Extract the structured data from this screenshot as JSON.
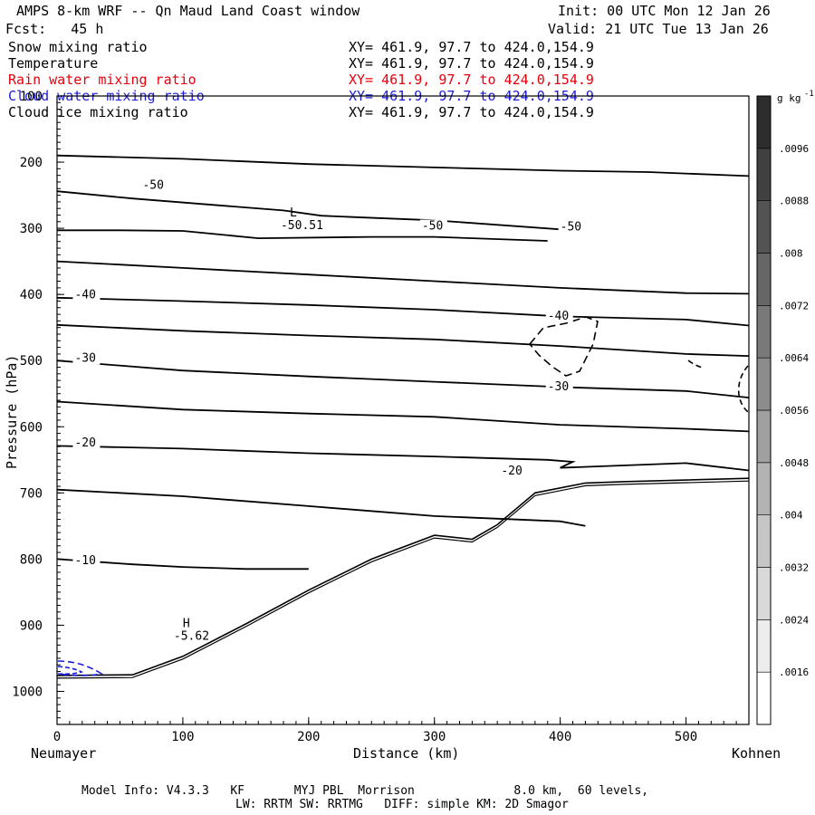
{
  "header": {
    "title": "AMPS 8-km WRF -- Qn Maud Land Coast window",
    "init": "Init: 00 UTC Mon 12 Jan 26",
    "fcst": "Fcst:   45 h",
    "valid": "Valid: 21 UTC Tue 13 Jan 26"
  },
  "fields": [
    {
      "name": "Snow mixing ratio",
      "xy": "XY= 461.9, 97.7 to 424.0,154.9",
      "color": "#000000"
    },
    {
      "name": "Temperature",
      "xy": "XY= 461.9, 97.7 to 424.0,154.9",
      "color": "#000000"
    },
    {
      "name": "Rain water mixing ratio",
      "xy": "XY= 461.9, 97.7 to 424.0,154.9",
      "color": "#e8000b"
    },
    {
      "name": "Cloud water mixing ratio",
      "xy": "XY= 461.9, 97.7 to 424.0,154.9",
      "color": "#1c1cd8"
    },
    {
      "name": "Cloud ice mixing ratio",
      "xy": "XY= 461.9, 97.7 to 424.0,154.9",
      "color": "#000000"
    }
  ],
  "chart_data": {
    "type": "cross-section contour",
    "xlabel": "Distance (km)",
    "ylabel": "Pressure (hPa)",
    "xlim": [
      0,
      550
    ],
    "ylim": [
      1050,
      100
    ],
    "x_ticks": [
      0,
      100,
      200,
      300,
      400,
      500
    ],
    "y_ticks": [
      100,
      200,
      300,
      400,
      500,
      600,
      700,
      800,
      900,
      1000
    ],
    "x_endpoint_labels": [
      "Neumayer",
      "Kohnen"
    ],
    "temperature_contours": [
      {
        "level": "-50",
        "points": [
          [
            0,
            244
          ],
          [
            60,
            255
          ],
          [
            120,
            264
          ],
          [
            180,
            273
          ],
          [
            210,
            281
          ],
          [
            235,
            283
          ],
          [
            300,
            288
          ],
          [
            410,
            303
          ]
        ]
      },
      {
        "level": "-50",
        "points": [
          [
            0,
            303
          ],
          [
            50,
            303
          ],
          [
            100,
            304
          ],
          [
            160,
            315
          ],
          [
            250,
            313
          ],
          [
            300,
            313
          ],
          [
            390,
            319
          ]
        ]
      },
      {
        "level": "",
        "points": [
          [
            0,
            190
          ],
          [
            100,
            195
          ],
          [
            200,
            203
          ],
          [
            300,
            208
          ],
          [
            400,
            213
          ],
          [
            470,
            215
          ],
          [
            550,
            221
          ]
        ]
      },
      {
        "level": "",
        "points": [
          [
            0,
            350
          ],
          [
            100,
            360
          ],
          [
            200,
            370
          ],
          [
            300,
            380
          ],
          [
            400,
            390
          ],
          [
            500,
            398
          ],
          [
            550,
            399
          ]
        ]
      },
      {
        "level": "-40",
        "points": [
          [
            0,
            405
          ],
          [
            100,
            410
          ],
          [
            200,
            416
          ],
          [
            300,
            423
          ],
          [
            400,
            433
          ],
          [
            500,
            438
          ],
          [
            550,
            447
          ]
        ]
      },
      {
        "level": "",
        "points": [
          [
            0,
            446
          ],
          [
            100,
            455
          ],
          [
            200,
            462
          ],
          [
            300,
            468
          ],
          [
            400,
            478
          ],
          [
            500,
            490
          ],
          [
            550,
            493
          ]
        ]
      },
      {
        "level": "-30",
        "points": [
          [
            0,
            500
          ],
          [
            100,
            515
          ],
          [
            200,
            524
          ],
          [
            300,
            532
          ],
          [
            400,
            540
          ],
          [
            500,
            546
          ],
          [
            550,
            556
          ]
        ]
      },
      {
        "level": "",
        "points": [
          [
            0,
            562
          ],
          [
            100,
            574
          ],
          [
            200,
            580
          ],
          [
            300,
            585
          ],
          [
            400,
            597
          ],
          [
            500,
            603
          ],
          [
            550,
            607
          ]
        ]
      },
      {
        "level": "-20",
        "points": [
          [
            0,
            629
          ],
          [
            100,
            633
          ],
          [
            200,
            640
          ],
          [
            300,
            645
          ],
          [
            390,
            650
          ],
          [
            410,
            653
          ],
          [
            400,
            662
          ],
          [
            500,
            655
          ],
          [
            550,
            666
          ]
        ]
      },
      {
        "level": "",
        "points": [
          [
            0,
            695
          ],
          [
            100,
            705
          ],
          [
            200,
            720
          ],
          [
            300,
            735
          ],
          [
            400,
            743
          ],
          [
            420,
            750
          ]
        ]
      },
      {
        "level": "-10",
        "points": [
          [
            0,
            800
          ],
          [
            60,
            808
          ],
          [
            100,
            812
          ],
          [
            150,
            815
          ],
          [
            200,
            815
          ]
        ]
      }
    ],
    "temperature_labels": [
      {
        "text": "-50",
        "x": 68,
        "p": 240
      },
      {
        "text": "-50",
        "x": 290,
        "p": 302
      },
      {
        "text": "-50",
        "x": 400,
        "p": 303
      },
      {
        "text": "-40",
        "x": 14,
        "p": 406
      },
      {
        "text": "-40",
        "x": 390,
        "p": 438
      },
      {
        "text": "-30",
        "x": 14,
        "p": 502
      },
      {
        "text": "-30",
        "x": 390,
        "p": 545
      },
      {
        "text": "-20",
        "x": 14,
        "p": 630
      },
      {
        "text": "-20",
        "x": 353,
        "p": 672
      },
      {
        "text": "-10",
        "x": 14,
        "p": 808
      }
    ],
    "extrema": [
      {
        "symbol": "L",
        "value": "-50.51",
        "x": 185,
        "p": 282
      },
      {
        "symbol": "H",
        "value": "-5.62",
        "x": 100,
        "p": 903
      }
    ],
    "terrain": [
      [
        0,
        976
      ],
      [
        60,
        975
      ],
      [
        100,
        947
      ],
      [
        150,
        898
      ],
      [
        200,
        847
      ],
      [
        250,
        800
      ],
      [
        300,
        764
      ],
      [
        330,
        770
      ],
      [
        350,
        748
      ],
      [
        380,
        700
      ],
      [
        420,
        685
      ],
      [
        450,
        683
      ],
      [
        550,
        678
      ]
    ],
    "colorbar": {
      "unit": "g kg-1",
      "ticks": [
        ".0016",
        ".0024",
        ".0032",
        ".004",
        ".0048",
        ".0056",
        ".0064",
        ".0072",
        ".008",
        ".0088",
        ".0096"
      ]
    }
  },
  "footer": {
    "model_info": "Model Info: V4.3.3   KF       MYJ PBL  Morrison              8.0 km,  60 levels,",
    "physics": "LW: RRTM SW: RRTMG   DIFF: simple KM: 2D Smagor"
  }
}
